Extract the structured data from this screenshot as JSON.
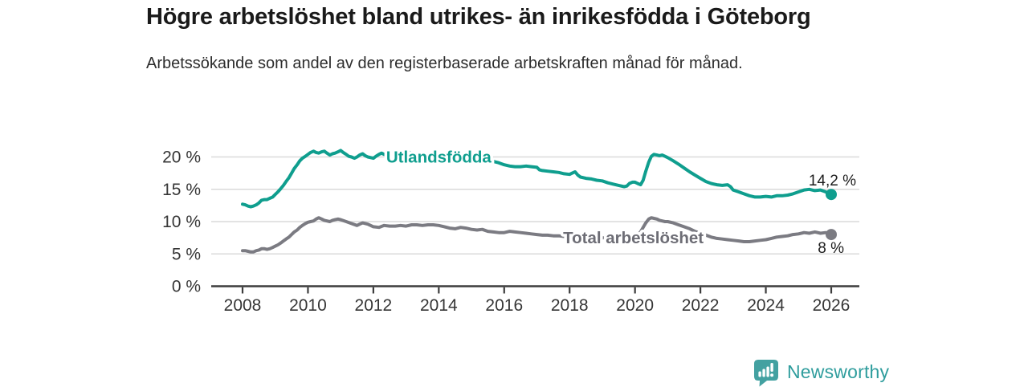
{
  "page": {
    "title": "Högre arbetslöshet bland utrikes- än inrikesfödda i Göteborg",
    "subtitle": "Arbetssökande som andel av den registerbaserade arbetskraften månad för månad."
  },
  "chart_data": {
    "type": "line",
    "title": "Högre arbetslöshet bland utrikes- än inrikesfödda i Göteborg",
    "subtitle": "Arbetssökande som andel av den registerbaserade arbetskraften månad för månad.",
    "x_axis": {
      "ticks": [
        2008,
        2010,
        2012,
        2014,
        2016,
        2018,
        2020,
        2022,
        2024,
        2026
      ],
      "range": [
        2007.05,
        2026.85
      ]
    },
    "y_axis": {
      "ticks": [
        0,
        5,
        10,
        15,
        20
      ],
      "tick_suffix": " %",
      "range": [
        0,
        22.3
      ],
      "grid": true
    },
    "colors": {
      "grid": "#dadada",
      "axis": "#3d3d3d",
      "tick_label": "#363636",
      "end_label": "#1c1c1c",
      "halo": "#ffffff"
    },
    "series": [
      {
        "name": "Utlandsfödda",
        "slug": "utlandsfodda",
        "color": "#0f9e8e",
        "label_color": "#0f9e8e",
        "label_at": {
          "x": 2014.0,
          "y": 20.0
        },
        "end_value": 14.2,
        "end_label": {
          "text": "14,2 %",
          "position": "above"
        },
        "points": [
          [
            2008.0,
            12.7
          ],
          [
            2008.08,
            12.6
          ],
          [
            2008.17,
            12.4
          ],
          [
            2008.25,
            12.3
          ],
          [
            2008.33,
            12.4
          ],
          [
            2008.42,
            12.6
          ],
          [
            2008.5,
            12.9
          ],
          [
            2008.58,
            13.3
          ],
          [
            2008.67,
            13.4
          ],
          [
            2008.75,
            13.4
          ],
          [
            2008.83,
            13.6
          ],
          [
            2008.92,
            13.8
          ],
          [
            2009.0,
            14.2
          ],
          [
            2009.08,
            14.6
          ],
          [
            2009.17,
            15.1
          ],
          [
            2009.25,
            15.6
          ],
          [
            2009.33,
            16.2
          ],
          [
            2009.42,
            16.8
          ],
          [
            2009.5,
            17.5
          ],
          [
            2009.58,
            18.2
          ],
          [
            2009.67,
            18.8
          ],
          [
            2009.75,
            19.4
          ],
          [
            2009.83,
            19.8
          ],
          [
            2009.92,
            20.1
          ],
          [
            2010.0,
            20.4
          ],
          [
            2010.08,
            20.7
          ],
          [
            2010.17,
            20.9
          ],
          [
            2010.25,
            20.7
          ],
          [
            2010.33,
            20.6
          ],
          [
            2010.42,
            20.8
          ],
          [
            2010.5,
            20.9
          ],
          [
            2010.58,
            20.6
          ],
          [
            2010.67,
            20.3
          ],
          [
            2010.75,
            20.5
          ],
          [
            2010.83,
            20.6
          ],
          [
            2010.92,
            20.8
          ],
          [
            2011.0,
            21.0
          ],
          [
            2011.08,
            20.7
          ],
          [
            2011.17,
            20.4
          ],
          [
            2011.25,
            20.1
          ],
          [
            2011.33,
            20.0
          ],
          [
            2011.42,
            19.8
          ],
          [
            2011.5,
            20.0
          ],
          [
            2011.58,
            20.3
          ],
          [
            2011.67,
            20.5
          ],
          [
            2011.75,
            20.2
          ],
          [
            2011.83,
            20.0
          ],
          [
            2011.92,
            19.9
          ],
          [
            2012.0,
            19.8
          ],
          [
            2012.08,
            20.1
          ],
          [
            2012.17,
            20.4
          ],
          [
            2012.25,
            20.6
          ],
          [
            2012.33,
            20.4
          ],
          [
            2012.42,
            20.3
          ],
          [
            2012.5,
            20.4
          ],
          [
            2012.58,
            20.5
          ],
          [
            2012.67,
            20.3
          ],
          [
            2012.75,
            20.5
          ],
          [
            2012.83,
            20.7
          ],
          [
            2012.92,
            20.8
          ],
          [
            2013.0,
            20.9
          ],
          [
            2013.17,
            20.6
          ],
          [
            2013.33,
            20.4
          ],
          [
            2013.5,
            20.2
          ],
          [
            2013.67,
            20.1
          ],
          [
            2013.83,
            20.0
          ],
          [
            2014.0,
            20.0
          ],
          [
            2014.25,
            19.9
          ],
          [
            2014.5,
            19.8
          ],
          [
            2014.75,
            19.7
          ],
          [
            2015.0,
            19.6
          ],
          [
            2015.25,
            19.5
          ],
          [
            2015.5,
            19.4
          ],
          [
            2015.67,
            19.3
          ],
          [
            2015.83,
            19.1
          ],
          [
            2016.0,
            18.8
          ],
          [
            2016.17,
            18.6
          ],
          [
            2016.33,
            18.5
          ],
          [
            2016.5,
            18.5
          ],
          [
            2016.67,
            18.6
          ],
          [
            2016.83,
            18.5
          ],
          [
            2017.0,
            18.4
          ],
          [
            2017.08,
            18.0
          ],
          [
            2017.17,
            17.9
          ],
          [
            2017.33,
            17.8
          ],
          [
            2017.5,
            17.7
          ],
          [
            2017.67,
            17.6
          ],
          [
            2017.83,
            17.4
          ],
          [
            2018.0,
            17.3
          ],
          [
            2018.08,
            17.5
          ],
          [
            2018.17,
            17.7
          ],
          [
            2018.25,
            17.2
          ],
          [
            2018.33,
            16.9
          ],
          [
            2018.5,
            16.7
          ],
          [
            2018.67,
            16.6
          ],
          [
            2018.83,
            16.4
          ],
          [
            2019.0,
            16.3
          ],
          [
            2019.17,
            16.0
          ],
          [
            2019.33,
            15.8
          ],
          [
            2019.5,
            15.6
          ],
          [
            2019.67,
            15.4
          ],
          [
            2019.75,
            15.5
          ],
          [
            2019.83,
            15.9
          ],
          [
            2019.92,
            16.1
          ],
          [
            2020.0,
            16.1
          ],
          [
            2020.08,
            15.9
          ],
          [
            2020.17,
            15.7
          ],
          [
            2020.25,
            16.4
          ],
          [
            2020.33,
            17.8
          ],
          [
            2020.42,
            19.2
          ],
          [
            2020.5,
            20.1
          ],
          [
            2020.58,
            20.4
          ],
          [
            2020.67,
            20.3
          ],
          [
            2020.75,
            20.2
          ],
          [
            2020.83,
            20.3
          ],
          [
            2020.92,
            20.1
          ],
          [
            2021.0,
            19.9
          ],
          [
            2021.17,
            19.4
          ],
          [
            2021.33,
            18.9
          ],
          [
            2021.5,
            18.3
          ],
          [
            2021.67,
            17.7
          ],
          [
            2021.83,
            17.2
          ],
          [
            2022.0,
            16.7
          ],
          [
            2022.17,
            16.2
          ],
          [
            2022.33,
            15.9
          ],
          [
            2022.5,
            15.7
          ],
          [
            2022.67,
            15.6
          ],
          [
            2022.83,
            15.7
          ],
          [
            2022.92,
            15.4
          ],
          [
            2023.0,
            14.9
          ],
          [
            2023.17,
            14.6
          ],
          [
            2023.33,
            14.3
          ],
          [
            2023.5,
            14.0
          ],
          [
            2023.67,
            13.8
          ],
          [
            2023.83,
            13.8
          ],
          [
            2024.0,
            13.9
          ],
          [
            2024.17,
            13.8
          ],
          [
            2024.33,
            14.0
          ],
          [
            2024.5,
            14.0
          ],
          [
            2024.67,
            14.1
          ],
          [
            2024.83,
            14.3
          ],
          [
            2025.0,
            14.6
          ],
          [
            2025.17,
            14.9
          ],
          [
            2025.33,
            15.0
          ],
          [
            2025.5,
            14.8
          ],
          [
            2025.67,
            14.9
          ],
          [
            2025.83,
            14.6
          ],
          [
            2026.0,
            14.2
          ]
        ]
      },
      {
        "name": "Total arbetslöshet",
        "slug": "total-arbetsloshet",
        "color": "#7b7b82",
        "label_color": "#6d6d75",
        "label_at": {
          "x": 2019.95,
          "y": 7.5
        },
        "end_value": 8.0,
        "end_label": {
          "text": "8 %",
          "position": "below"
        },
        "points": [
          [
            2008.0,
            5.5
          ],
          [
            2008.08,
            5.5
          ],
          [
            2008.17,
            5.4
          ],
          [
            2008.25,
            5.3
          ],
          [
            2008.33,
            5.3
          ],
          [
            2008.42,
            5.5
          ],
          [
            2008.5,
            5.6
          ],
          [
            2008.58,
            5.8
          ],
          [
            2008.67,
            5.8
          ],
          [
            2008.75,
            5.7
          ],
          [
            2008.83,
            5.8
          ],
          [
            2008.92,
            6.0
          ],
          [
            2009.0,
            6.2
          ],
          [
            2009.08,
            6.4
          ],
          [
            2009.17,
            6.7
          ],
          [
            2009.25,
            7.0
          ],
          [
            2009.33,
            7.3
          ],
          [
            2009.42,
            7.6
          ],
          [
            2009.5,
            8.0
          ],
          [
            2009.58,
            8.4
          ],
          [
            2009.67,
            8.7
          ],
          [
            2009.75,
            9.1
          ],
          [
            2009.83,
            9.4
          ],
          [
            2009.92,
            9.7
          ],
          [
            2010.0,
            9.9
          ],
          [
            2010.08,
            10.0
          ],
          [
            2010.17,
            10.1
          ],
          [
            2010.25,
            10.4
          ],
          [
            2010.33,
            10.6
          ],
          [
            2010.42,
            10.4
          ],
          [
            2010.5,
            10.2
          ],
          [
            2010.58,
            10.1
          ],
          [
            2010.67,
            10.0
          ],
          [
            2010.75,
            10.2
          ],
          [
            2010.83,
            10.3
          ],
          [
            2010.92,
            10.4
          ],
          [
            2011.0,
            10.3
          ],
          [
            2011.17,
            10.0
          ],
          [
            2011.33,
            9.7
          ],
          [
            2011.5,
            9.4
          ],
          [
            2011.58,
            9.6
          ],
          [
            2011.67,
            9.8
          ],
          [
            2011.83,
            9.6
          ],
          [
            2012.0,
            9.2
          ],
          [
            2012.17,
            9.1
          ],
          [
            2012.33,
            9.4
          ],
          [
            2012.5,
            9.3
          ],
          [
            2012.67,
            9.3
          ],
          [
            2012.83,
            9.4
          ],
          [
            2013.0,
            9.3
          ],
          [
            2013.17,
            9.5
          ],
          [
            2013.33,
            9.5
          ],
          [
            2013.5,
            9.4
          ],
          [
            2013.67,
            9.5
          ],
          [
            2013.83,
            9.5
          ],
          [
            2014.0,
            9.4
          ],
          [
            2014.17,
            9.2
          ],
          [
            2014.33,
            9.0
          ],
          [
            2014.5,
            8.9
          ],
          [
            2014.67,
            9.1
          ],
          [
            2014.83,
            9.0
          ],
          [
            2015.0,
            8.8
          ],
          [
            2015.17,
            8.7
          ],
          [
            2015.33,
            8.8
          ],
          [
            2015.5,
            8.5
          ],
          [
            2015.67,
            8.4
          ],
          [
            2015.83,
            8.3
          ],
          [
            2016.0,
            8.3
          ],
          [
            2016.17,
            8.5
          ],
          [
            2016.33,
            8.4
          ],
          [
            2016.5,
            8.3
          ],
          [
            2016.67,
            8.2
          ],
          [
            2016.83,
            8.1
          ],
          [
            2017.0,
            8.0
          ],
          [
            2017.17,
            7.9
          ],
          [
            2017.33,
            7.9
          ],
          [
            2017.5,
            7.8
          ],
          [
            2017.67,
            7.8
          ],
          [
            2017.83,
            7.7
          ],
          [
            2018.0,
            7.7
          ],
          [
            2018.25,
            7.6
          ],
          [
            2018.5,
            7.6
          ],
          [
            2018.75,
            7.5
          ],
          [
            2019.0,
            7.5
          ],
          [
            2019.25,
            7.4
          ],
          [
            2019.5,
            7.4
          ],
          [
            2019.75,
            7.4
          ],
          [
            2020.0,
            7.6
          ],
          [
            2020.08,
            7.9
          ],
          [
            2020.17,
            8.4
          ],
          [
            2020.25,
            9.1
          ],
          [
            2020.33,
            9.8
          ],
          [
            2020.42,
            10.4
          ],
          [
            2020.5,
            10.6
          ],
          [
            2020.58,
            10.5
          ],
          [
            2020.67,
            10.4
          ],
          [
            2020.75,
            10.2
          ],
          [
            2020.83,
            10.1
          ],
          [
            2020.92,
            10.0
          ],
          [
            2021.0,
            10.0
          ],
          [
            2021.17,
            9.8
          ],
          [
            2021.33,
            9.5
          ],
          [
            2021.5,
            9.2
          ],
          [
            2021.67,
            8.9
          ],
          [
            2021.83,
            8.5
          ],
          [
            2022.0,
            8.2
          ],
          [
            2022.17,
            7.9
          ],
          [
            2022.33,
            7.6
          ],
          [
            2022.5,
            7.4
          ],
          [
            2022.67,
            7.3
          ],
          [
            2022.83,
            7.2
          ],
          [
            2023.0,
            7.1
          ],
          [
            2023.17,
            7.0
          ],
          [
            2023.33,
            6.9
          ],
          [
            2023.5,
            6.9
          ],
          [
            2023.67,
            7.0
          ],
          [
            2023.83,
            7.1
          ],
          [
            2024.0,
            7.2
          ],
          [
            2024.17,
            7.4
          ],
          [
            2024.33,
            7.6
          ],
          [
            2024.5,
            7.7
          ],
          [
            2024.67,
            7.8
          ],
          [
            2024.83,
            8.0
          ],
          [
            2025.0,
            8.1
          ],
          [
            2025.17,
            8.3
          ],
          [
            2025.33,
            8.2
          ],
          [
            2025.5,
            8.4
          ],
          [
            2025.67,
            8.2
          ],
          [
            2025.83,
            8.3
          ],
          [
            2026.0,
            8.0
          ]
        ]
      }
    ]
  },
  "footer": {
    "brand": "Newsworthy",
    "brand_color": "#2f9d9d",
    "logo_color": "#43a1a1",
    "logo_icon": "bar-chart-speech-bubble-icon"
  }
}
